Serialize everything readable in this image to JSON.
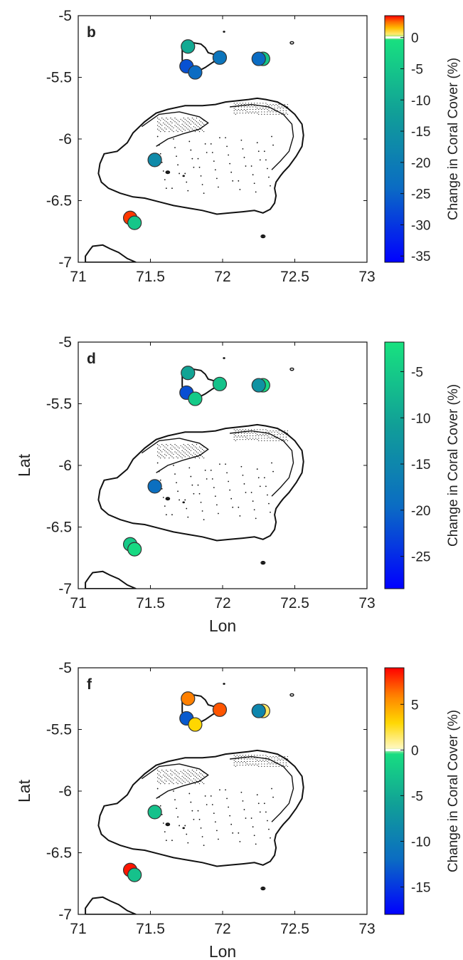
{
  "figure": {
    "colors": {
      "coast": "#111111",
      "axes": "#111111",
      "marker_edge": "#333333",
      "scale_neg": [
        "#0000ff",
        "#0b6cc3",
        "#119f97",
        "#18e27f"
      ],
      "scale_pos": [
        "#fffacc",
        "#ffd700",
        "#ff8000",
        "#ff0000"
      ]
    },
    "panels": [
      {
        "label": "b",
        "xlabel": "",
        "ylabel": "",
        "colorbar": {
          "title": "Change in Coral Cover (%)",
          "min": -36,
          "max": 3.5,
          "ticks": [
            0,
            -5,
            -10,
            -15,
            -20,
            -25,
            -30,
            -35
          ],
          "tick_labels": [
            "0",
            "-5",
            "-10",
            "-15",
            "-20",
            "-25",
            "-30",
            "-35"
          ]
        },
        "sites": [
          {
            "lon": 71.76,
            "lat": -5.25,
            "value": -10
          },
          {
            "lon": 71.98,
            "lat": -5.34,
            "value": -22
          },
          {
            "lon": 71.75,
            "lat": -5.41,
            "value": -27
          },
          {
            "lon": 71.81,
            "lat": -5.46,
            "value": -24
          },
          {
            "lon": 72.28,
            "lat": -5.35,
            "value": -5
          },
          {
            "lon": 72.25,
            "lat": -5.35,
            "value": -24
          },
          {
            "lon": 71.53,
            "lat": -6.17,
            "value": -17
          },
          {
            "lon": 71.36,
            "lat": -6.64,
            "value": 3
          },
          {
            "lon": 71.39,
            "lat": -6.68,
            "value": -5
          }
        ]
      },
      {
        "label": "d",
        "xlabel": "Lon",
        "ylabel": "Lat",
        "colorbar": {
          "title": "Change in Coral Cover (%)",
          "min": -28.5,
          "max": -1.8,
          "ticks": [
            -5,
            -10,
            -15,
            -20,
            -25
          ],
          "tick_labels": [
            "-5",
            "-10",
            "-15",
            "-20",
            "-25"
          ]
        },
        "sites": [
          {
            "lon": 71.76,
            "lat": -5.25,
            "value": -10
          },
          {
            "lon": 71.98,
            "lat": -5.34,
            "value": -6
          },
          {
            "lon": 71.75,
            "lat": -5.41,
            "value": -22
          },
          {
            "lon": 71.81,
            "lat": -5.46,
            "value": -5
          },
          {
            "lon": 72.28,
            "lat": -5.35,
            "value": -3
          },
          {
            "lon": 72.25,
            "lat": -5.35,
            "value": -13
          },
          {
            "lon": 71.53,
            "lat": -6.17,
            "value": -19
          },
          {
            "lon": 71.36,
            "lat": -6.64,
            "value": -5
          },
          {
            "lon": 71.39,
            "lat": -6.68,
            "value": -3
          }
        ]
      },
      {
        "label": "f",
        "xlabel": "Lon",
        "ylabel": "Lat",
        "colorbar": {
          "title": "Change in Coral Cover (%)",
          "min": -18,
          "max": 9,
          "ticks": [
            5,
            0,
            -5,
            -10,
            -15
          ],
          "tick_labels": [
            "5",
            "0",
            "-5",
            "-10",
            "-15"
          ]
        },
        "sites": [
          {
            "lon": 71.76,
            "lat": -5.25,
            "value": 6
          },
          {
            "lon": 71.98,
            "lat": -5.34,
            "value": 7
          },
          {
            "lon": 71.75,
            "lat": -5.41,
            "value": -13
          },
          {
            "lon": 71.81,
            "lat": -5.46,
            "value": 3
          },
          {
            "lon": 72.28,
            "lat": -5.35,
            "value": 1.5
          },
          {
            "lon": 72.25,
            "lat": -5.35,
            "value": -9
          },
          {
            "lon": 71.53,
            "lat": -6.17,
            "value": -3
          },
          {
            "lon": 71.36,
            "lat": -6.64,
            "value": 8.5
          },
          {
            "lon": 71.39,
            "lat": -6.68,
            "value": -3
          }
        ]
      }
    ],
    "axes": {
      "lon_min": 71,
      "lon_max": 73,
      "lat_min": -7,
      "lat_max": -5,
      "xticks": [
        71,
        71.5,
        72,
        72.5,
        73
      ],
      "xtick_labels": [
        "71",
        "71.5",
        "72",
        "72.5",
        "73"
      ],
      "yticks": [
        -5,
        -5.5,
        -6,
        -6.5,
        -7
      ],
      "ytick_labels": [
        "-5",
        "-5.5",
        "-6",
        "-6.5",
        "-7"
      ]
    }
  }
}
